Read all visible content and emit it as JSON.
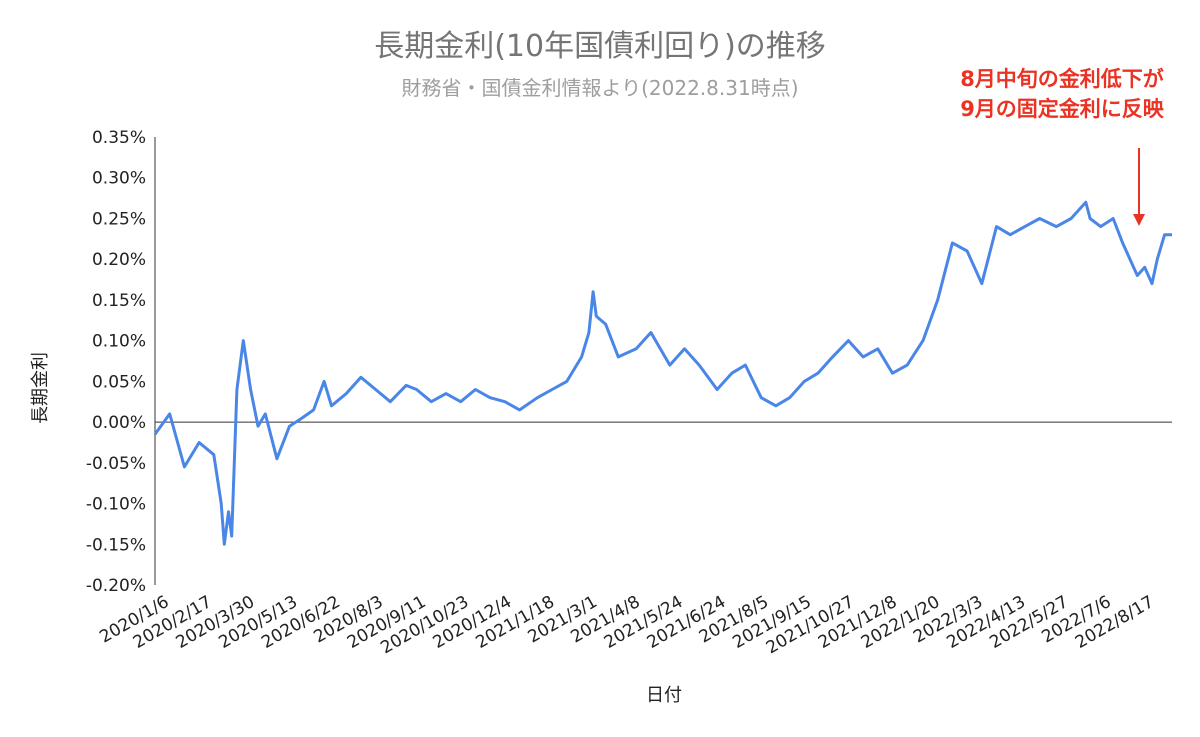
{
  "chart_data": {
    "type": "line",
    "title": "長期金利(10年国債利回り)の推移",
    "subtitle": "財務省・国債金利情報より(2022.8.31時点)",
    "xlabel": "日付",
    "ylabel": "長期金利",
    "annotation": [
      "8月中旬の金利低下が",
      "9月の固定金利に反映"
    ],
    "ylim": [
      -0.2,
      0.35
    ],
    "y_ticks": [
      -0.2,
      -0.15,
      -0.1,
      -0.05,
      0.0,
      0.05,
      0.1,
      0.15,
      0.2,
      0.25,
      0.3,
      0.35
    ],
    "y_tick_labels": [
      "-0.20%",
      "-0.15%",
      "-0.10%",
      "-0.05%",
      "0.00%",
      "0.05%",
      "0.10%",
      "0.15%",
      "0.20%",
      "0.25%",
      "0.30%",
      "0.35%"
    ],
    "x_tick_labels": [
      "2020/1/6",
      "2020/2/17",
      "2020/3/30",
      "2020/5/13",
      "2020/6/22",
      "2020/8/3",
      "2020/9/11",
      "2020/10/23",
      "2020/12/4",
      "2021/1/18",
      "2021/3/1",
      "2021/4/8",
      "2021/5/24",
      "2021/6/24",
      "2021/8/5",
      "2021/9/15",
      "2021/10/27",
      "2021/12/8",
      "2022/1/20",
      "2022/3/3",
      "2022/4/13",
      "2022/5/27",
      "2022/7/6",
      "2022/8/17"
    ],
    "grid": false,
    "legend": "none",
    "line_color": "#4a86e8",
    "annotation_color": "#ea3323",
    "series": [
      {
        "x": [
          "2020/1/6",
          "2020/1/20",
          "2020/2/3",
          "2020/2/17",
          "2020/3/2",
          "2020/3/9",
          "2020/3/12",
          "2020/3/16",
          "2020/3/19",
          "2020/3/24",
          "2020/3/30",
          "2020/4/6",
          "2020/4/13",
          "2020/4/20",
          "2020/5/1",
          "2020/5/13",
          "2020/5/25",
          "2020/6/5",
          "2020/6/15",
          "2020/6/22",
          "2020/7/6",
          "2020/7/20",
          "2020/8/3",
          "2020/8/17",
          "2020/9/1",
          "2020/9/11",
          "2020/9/25",
          "2020/10/9",
          "2020/10/23",
          "2020/11/6",
          "2020/11/20",
          "2020/12/4",
          "2020/12/18",
          "2021/1/4",
          "2021/1/18",
          "2021/2/1",
          "2021/2/15",
          "2021/2/22",
          "2021/2/26",
          "2021/3/1",
          "2021/3/10",
          "2021/3/22",
          "2021/4/8",
          "2021/4/22",
          "2021/5/10",
          "2021/5/24",
          "2021/6/7",
          "2021/6/24",
          "2021/7/8",
          "2021/7/21",
          "2021/8/5",
          "2021/8/19",
          "2021/9/1",
          "2021/9/15",
          "2021/9/28",
          "2021/10/12",
          "2021/10/27",
          "2021/11/10",
          "2021/11/24",
          "2021/12/8",
          "2021/12/22",
          "2022/1/6",
          "2022/1/20",
          "2022/2/3",
          "2022/2/17",
          "2022/3/3",
          "2022/3/9",
          "2022/3/17",
          "2022/3/30",
          "2022/4/13",
          "2022/4/27",
          "2022/5/13",
          "2022/5/27",
          "2022/6/10",
          "2022/6/14",
          "2022/6/24",
          "2022/7/6",
          "2022/7/15",
          "2022/7/29",
          "2022/8/5",
          "2022/8/12",
          "2022/8/17",
          "2022/8/24",
          "2022/8/31"
        ],
        "y": [
          -0.015,
          0.01,
          -0.055,
          -0.025,
          -0.04,
          -0.1,
          -0.15,
          -0.11,
          -0.14,
          0.04,
          0.1,
          0.04,
          -0.005,
          0.01,
          -0.045,
          -0.005,
          0.005,
          0.015,
          0.05,
          0.02,
          0.035,
          0.055,
          0.04,
          0.025,
          0.045,
          0.04,
          0.025,
          0.035,
          0.025,
          0.04,
          0.03,
          0.025,
          0.015,
          0.03,
          0.04,
          0.05,
          0.08,
          0.11,
          0.16,
          0.13,
          0.12,
          0.08,
          0.09,
          0.11,
          0.07,
          0.09,
          0.07,
          0.04,
          0.06,
          0.07,
          0.03,
          0.02,
          0.03,
          0.05,
          0.06,
          0.08,
          0.1,
          0.08,
          0.09,
          0.06,
          0.07,
          0.1,
          0.15,
          0.22,
          0.21,
          0.17,
          0.2,
          0.24,
          0.23,
          0.24,
          0.25,
          0.24,
          0.25,
          0.27,
          0.25,
          0.24,
          0.25,
          0.22,
          0.18,
          0.19,
          0.17,
          0.2,
          0.23,
          0.23
        ]
      }
    ]
  }
}
